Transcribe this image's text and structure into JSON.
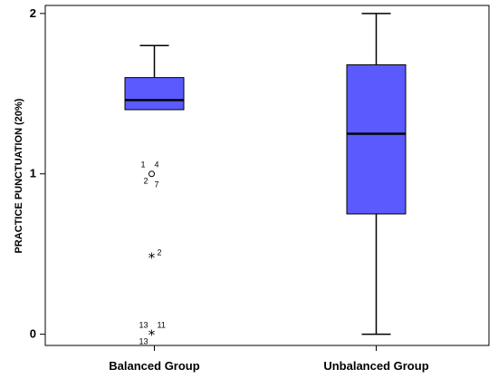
{
  "chart_data": {
    "type": "boxplot",
    "ylabel": "PRACTICE PUNCTUATION (20%)",
    "xlabel": "",
    "ylim": [
      -0.07,
      2.05
    ],
    "yticks": [
      0,
      1,
      2
    ],
    "grid": false,
    "box_color": "#5a5aff",
    "categories": [
      "Balanced Group",
      "Unbalanced Group"
    ],
    "groups": [
      {
        "name": "Balanced Group",
        "whisker_low": 1.4,
        "q1": 1.4,
        "median": 1.46,
        "q3": 1.6,
        "whisker_high": 1.8,
        "outliers": [
          {
            "value": 1.0,
            "marker": "circle",
            "labels": [
              "1",
              "4",
              "2",
              "7"
            ]
          },
          {
            "value": 0.48,
            "marker": "star",
            "labels": [
              "2"
            ]
          },
          {
            "value": 0.0,
            "marker": "star",
            "labels": [
              "13",
              "11",
              "13"
            ]
          }
        ]
      },
      {
        "name": "Unbalanced Group",
        "whisker_low": 0.0,
        "q1": 0.75,
        "median": 1.25,
        "q3": 1.68,
        "whisker_high": 2.0,
        "outliers": []
      }
    ]
  }
}
